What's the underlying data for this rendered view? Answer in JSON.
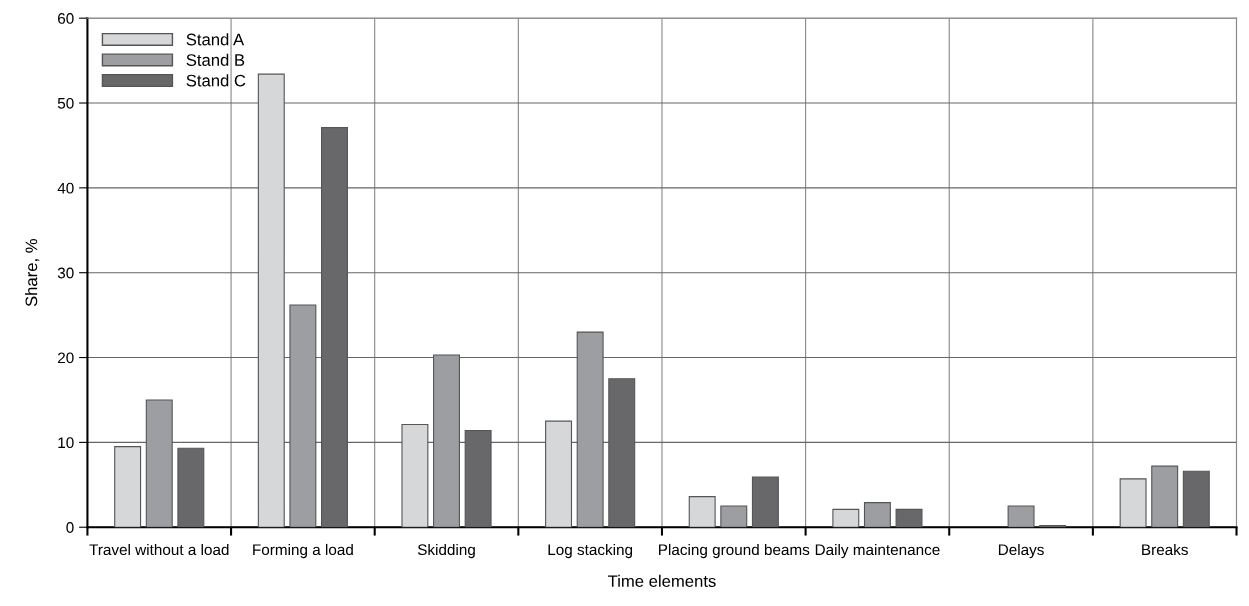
{
  "chart_data": {
    "type": "bar",
    "xlabel": "Time elements",
    "ylabel": "Share, %",
    "categories": [
      "Travel without a load",
      "Forming a load",
      "Skidding",
      "Log stacking",
      "Placing ground beams",
      "Daily maintenance",
      "Delays",
      "Breaks"
    ],
    "series": [
      {
        "name": "Stand A",
        "color": "#d6d7d9",
        "values": [
          9.5,
          53.4,
          12.1,
          12.5,
          3.6,
          2.1,
          null,
          5.7
        ]
      },
      {
        "name": "Stand B",
        "color": "#9d9ea2",
        "values": [
          15.0,
          26.2,
          20.3,
          23.0,
          2.5,
          2.9,
          2.5,
          7.2
        ]
      },
      {
        "name": "Stand C",
        "color": "#68686a",
        "values": [
          9.3,
          47.1,
          11.4,
          17.5,
          5.9,
          2.1,
          0.2,
          6.6
        ]
      }
    ],
    "ylim": [
      0,
      60
    ],
    "yticks": [
      0,
      10,
      20,
      30,
      40,
      50,
      60
    ],
    "grid": true,
    "legend": "top left"
  }
}
